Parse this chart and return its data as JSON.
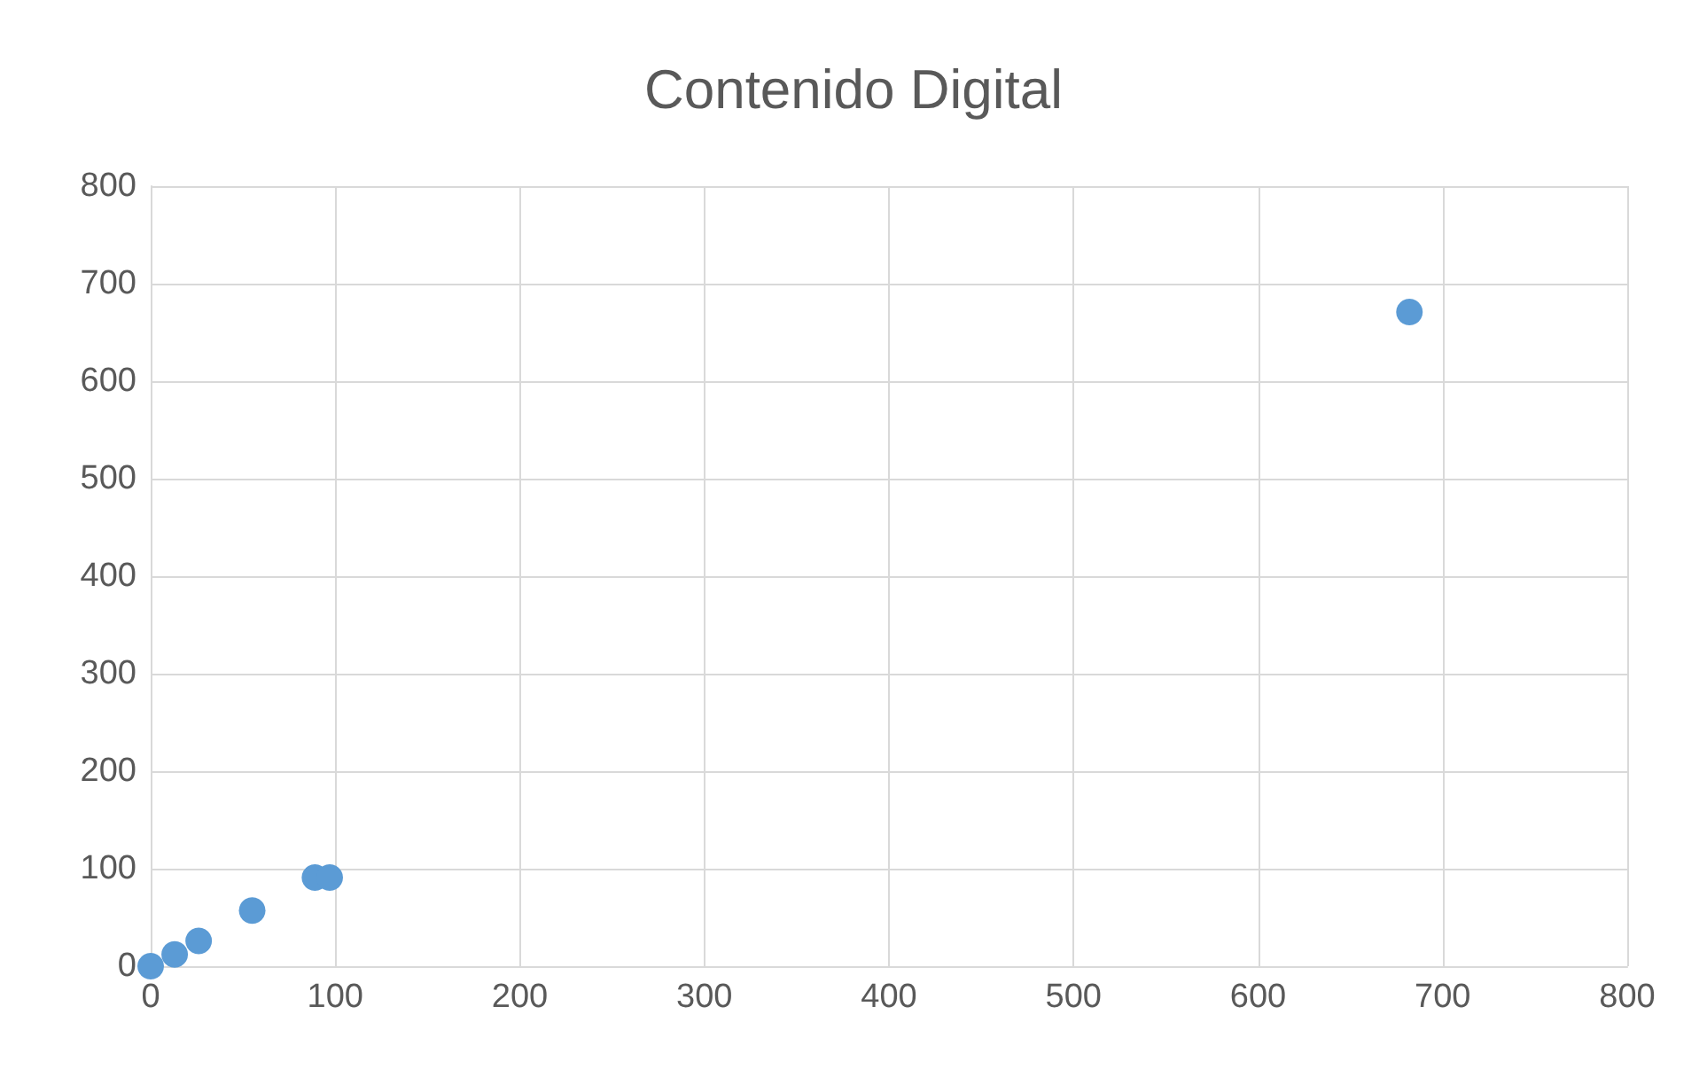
{
  "chart_data": {
    "type": "scatter",
    "title": "Contenido Digital",
    "x": [
      0,
      13,
      26,
      55,
      89,
      97,
      682
    ],
    "values": [
      0,
      12,
      26,
      57,
      91,
      91,
      671
    ],
    "color": "#5b9bd5",
    "marker": "circle",
    "grid": true,
    "xlim": [
      0,
      800
    ],
    "xticks": [
      0,
      100,
      200,
      300,
      400,
      500,
      600,
      700,
      800
    ],
    "ylim": [
      0,
      800
    ],
    "yticks": [
      0,
      100,
      200,
      300,
      400,
      500,
      600,
      700,
      800
    ]
  }
}
